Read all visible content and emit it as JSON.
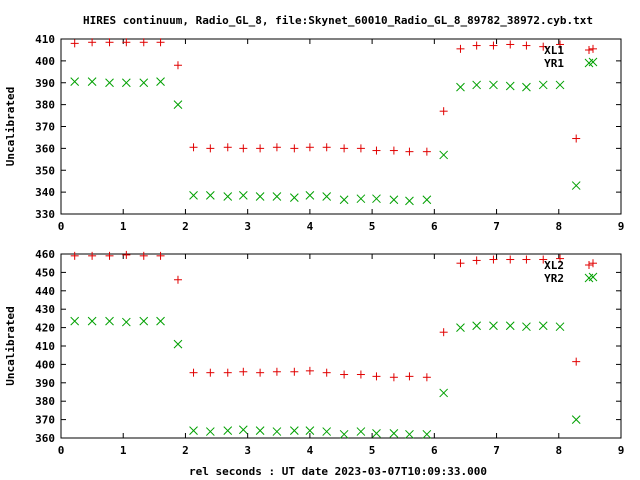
{
  "chart_data": [
    {
      "type": "scatter",
      "title": "HIRES continuum, Radio_GL_8, file:Skynet_60010_Radio_GL_8_89782_38972.cyb.txt",
      "ylabel": "Uncalibrated",
      "xlabel": "",
      "xlim": [
        0,
        9
      ],
      "ylim": [
        330,
        410
      ],
      "xticks": [
        "0",
        "1",
        "2",
        "3",
        "4",
        "5",
        "6",
        "7",
        "8",
        "9"
      ],
      "yticks": [
        "330",
        "340",
        "350",
        "360",
        "370",
        "380",
        "390",
        "400",
        "410"
      ],
      "legend_position": "top-right",
      "grid": false,
      "series": [
        {
          "name": "XL1",
          "marker": "plus",
          "color": "#e00000",
          "points": [
            [
              0.22,
              408
            ],
            [
              0.5,
              408.5
            ],
            [
              0.78,
              408.5
            ],
            [
              1.05,
              408.5
            ],
            [
              1.33,
              408.5
            ],
            [
              1.6,
              408.5
            ],
            [
              1.88,
              398
            ],
            [
              2.13,
              360.5
            ],
            [
              2.4,
              360
            ],
            [
              2.68,
              360.5
            ],
            [
              2.93,
              360
            ],
            [
              3.2,
              360
            ],
            [
              3.47,
              360.5
            ],
            [
              3.75,
              360
            ],
            [
              4.0,
              360.5
            ],
            [
              4.27,
              360.5
            ],
            [
              4.55,
              360
            ],
            [
              4.82,
              360
            ],
            [
              5.07,
              359
            ],
            [
              5.35,
              359
            ],
            [
              5.6,
              358.5
            ],
            [
              5.88,
              358.5
            ],
            [
              6.15,
              377
            ],
            [
              6.42,
              405.5
            ],
            [
              6.68,
              407
            ],
            [
              6.95,
              407
            ],
            [
              7.22,
              407.5
            ],
            [
              7.48,
              407
            ],
            [
              7.75,
              406.5
            ],
            [
              8.02,
              407.5
            ],
            [
              8.28,
              364.5
            ],
            [
              8.55,
              405.5
            ]
          ]
        },
        {
          "name": "YR1",
          "marker": "cross",
          "color": "#00a000",
          "points": [
            [
              0.22,
              390.5
            ],
            [
              0.5,
              390.5
            ],
            [
              0.78,
              390
            ],
            [
              1.05,
              390
            ],
            [
              1.33,
              390
            ],
            [
              1.6,
              390.5
            ],
            [
              1.88,
              380
            ],
            [
              2.13,
              338.5
            ],
            [
              2.4,
              338.5
            ],
            [
              2.68,
              338
            ],
            [
              2.93,
              338.5
            ],
            [
              3.2,
              338
            ],
            [
              3.47,
              338
            ],
            [
              3.75,
              337.5
            ],
            [
              4.0,
              338.5
            ],
            [
              4.27,
              338
            ],
            [
              4.55,
              336.5
            ],
            [
              4.82,
              337
            ],
            [
              5.07,
              337
            ],
            [
              5.35,
              336.5
            ],
            [
              5.6,
              336
            ],
            [
              5.88,
              336.5
            ],
            [
              6.15,
              357
            ],
            [
              6.42,
              388
            ],
            [
              6.68,
              389
            ],
            [
              6.95,
              389
            ],
            [
              7.22,
              388.5
            ],
            [
              7.48,
              388
            ],
            [
              7.75,
              389
            ],
            [
              8.02,
              389
            ],
            [
              8.28,
              343
            ],
            [
              8.55,
              399.5
            ]
          ]
        }
      ]
    },
    {
      "type": "scatter",
      "title": "",
      "ylabel": "Uncalibrated",
      "xlabel": "rel seconds : UT date 2023-03-07T10:09:33.000",
      "xlim": [
        0,
        9
      ],
      "ylim": [
        360,
        460
      ],
      "xticks": [
        "0",
        "1",
        "2",
        "3",
        "4",
        "5",
        "6",
        "7",
        "8",
        "9"
      ],
      "yticks": [
        "360",
        "370",
        "380",
        "390",
        "400",
        "410",
        "420",
        "430",
        "440",
        "450",
        "460"
      ],
      "legend_position": "top-right",
      "grid": false,
      "series": [
        {
          "name": "XL2",
          "marker": "plus",
          "color": "#e00000",
          "points": [
            [
              0.22,
              459
            ],
            [
              0.5,
              459
            ],
            [
              0.78,
              459
            ],
            [
              1.05,
              459.5
            ],
            [
              1.33,
              459
            ],
            [
              1.6,
              459
            ],
            [
              1.88,
              446
            ],
            [
              2.13,
              395.5
            ],
            [
              2.4,
              395.5
            ],
            [
              2.68,
              395.5
            ],
            [
              2.93,
              396
            ],
            [
              3.2,
              395.5
            ],
            [
              3.47,
              396
            ],
            [
              3.75,
              396
            ],
            [
              4.0,
              396.5
            ],
            [
              4.27,
              395.5
            ],
            [
              4.55,
              394.5
            ],
            [
              4.82,
              394.5
            ],
            [
              5.07,
              393.5
            ],
            [
              5.35,
              393
            ],
            [
              5.6,
              393.5
            ],
            [
              5.88,
              393
            ],
            [
              6.15,
              417.5
            ],
            [
              6.42,
              455
            ],
            [
              6.68,
              456.5
            ],
            [
              6.95,
              457
            ],
            [
              7.22,
              457
            ],
            [
              7.48,
              457
            ],
            [
              7.75,
              457
            ],
            [
              8.02,
              457.5
            ],
            [
              8.28,
              401.5
            ],
            [
              8.55,
              455
            ]
          ]
        },
        {
          "name": "YR2",
          "marker": "cross",
          "color": "#00a000",
          "points": [
            [
              0.22,
              423.5
            ],
            [
              0.5,
              423.5
            ],
            [
              0.78,
              423.5
            ],
            [
              1.05,
              423
            ],
            [
              1.33,
              423.5
            ],
            [
              1.6,
              423.5
            ],
            [
              1.88,
              411
            ],
            [
              2.13,
              364
            ],
            [
              2.4,
              363.5
            ],
            [
              2.68,
              364
            ],
            [
              2.93,
              364.5
            ],
            [
              3.2,
              364
            ],
            [
              3.47,
              363.5
            ],
            [
              3.75,
              364
            ],
            [
              4.0,
              364
            ],
            [
              4.27,
              363.5
            ],
            [
              4.55,
              362
            ],
            [
              4.82,
              363.5
            ],
            [
              5.07,
              362.5
            ],
            [
              5.35,
              362.5
            ],
            [
              5.6,
              362
            ],
            [
              5.88,
              362
            ],
            [
              6.15,
              384.5
            ],
            [
              6.42,
              420
            ],
            [
              6.68,
              421
            ],
            [
              6.95,
              421
            ],
            [
              7.22,
              421
            ],
            [
              7.48,
              420.5
            ],
            [
              7.75,
              421
            ],
            [
              8.02,
              420.5
            ],
            [
              8.28,
              370
            ],
            [
              8.55,
              447.5
            ]
          ]
        }
      ]
    }
  ]
}
